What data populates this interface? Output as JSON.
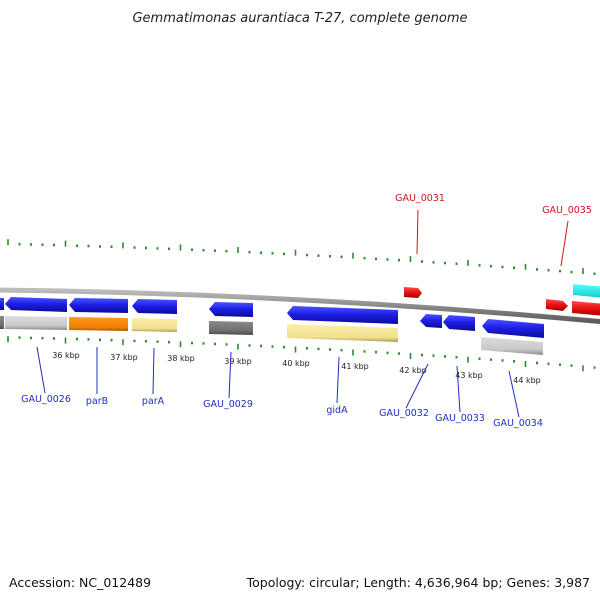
{
  "title": "Gemmatimonas aurantiaca T-27, complete genome",
  "footer": {
    "accession": "Accession: NC_012489",
    "summary": "Topology: circular; Length: 4,636,964 bp; Genes: 3,987"
  },
  "colors": {
    "forward_label": "#d0141a",
    "reverse_label": "#1f2fbf",
    "tick": "#2e8b2e",
    "backbone": "#8a8a8a"
  },
  "scale_labels": [
    {
      "text": "36 kbp",
      "value_kbp": 36
    },
    {
      "text": "37 kbp",
      "value_kbp": 37
    },
    {
      "text": "38 kbp",
      "value_kbp": 38
    },
    {
      "text": "39 kbp",
      "value_kbp": 39
    },
    {
      "text": "40 kbp",
      "value_kbp": 40
    },
    {
      "text": "41 kbp",
      "value_kbp": 41
    },
    {
      "text": "42 kbp",
      "value_kbp": 42
    },
    {
      "text": "43 kbp",
      "value_kbp": 43
    },
    {
      "text": "44 kbp",
      "value_kbp": 44
    }
  ],
  "gene_labels": [
    {
      "name": "GAU_0026",
      "strand": "reverse"
    },
    {
      "name": "parB",
      "strand": "reverse"
    },
    {
      "name": "parA",
      "strand": "reverse"
    },
    {
      "name": "GAU_0029",
      "strand": "reverse"
    },
    {
      "name": "gidA",
      "strand": "reverse"
    },
    {
      "name": "GAU_0032",
      "strand": "reverse"
    },
    {
      "name": "GAU_0033",
      "strand": "reverse"
    },
    {
      "name": "GAU_0034",
      "strand": "reverse"
    },
    {
      "name": "GAU_0031",
      "strand": "forward"
    },
    {
      "name": "GAU_0035",
      "strand": "forward"
    }
  ]
}
